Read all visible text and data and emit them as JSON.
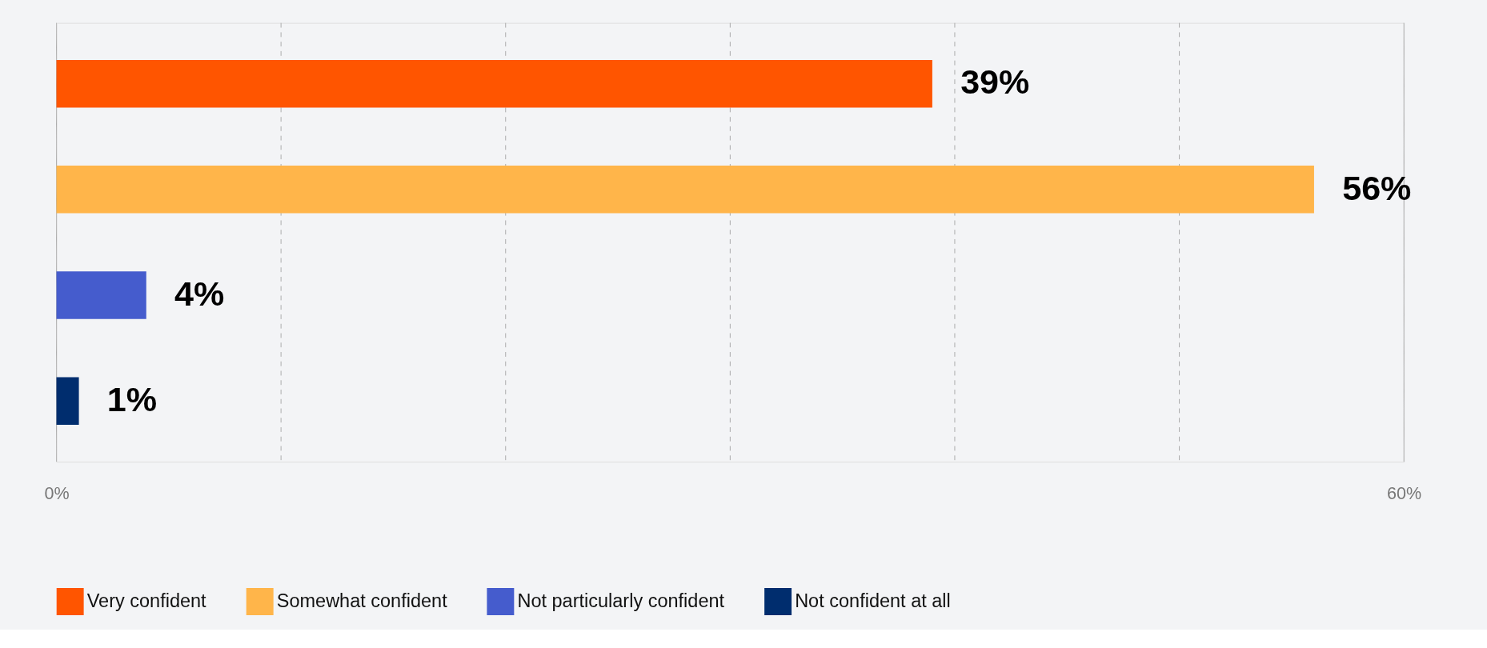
{
  "chart_data": {
    "type": "bar",
    "orientation": "horizontal",
    "categories": [
      null,
      null,
      null,
      null
    ],
    "series": [
      {
        "name": "Very confident",
        "color": "#ff5500",
        "values": [
          39,
          null,
          null,
          null
        ],
        "value_labels": [
          "39%",
          null,
          null,
          null
        ]
      },
      {
        "name": "Somewhat confident",
        "color": "#ffb54a",
        "values": [
          null,
          56,
          null,
          null
        ],
        "value_labels": [
          null,
          "56%",
          null,
          null
        ]
      },
      {
        "name": "Not particularly confident",
        "color": "#455ccd",
        "values": [
          null,
          null,
          4,
          null
        ],
        "value_labels": [
          null,
          null,
          "4%",
          null
        ]
      },
      {
        "name": "Not confident at all",
        "color": "#002d6e",
        "values": [
          null,
          null,
          null,
          1
        ],
        "value_labels": [
          null,
          null,
          null,
          "1%"
        ]
      }
    ],
    "xlim": [
      0,
      60
    ],
    "xticks": [
      {
        "value": 0,
        "label": "0%"
      },
      {
        "value": 10,
        "label": null
      },
      {
        "value": 20,
        "label": null
      },
      {
        "value": 30,
        "label": null
      },
      {
        "value": 40,
        "label": null
      },
      {
        "value": 50,
        "label": null
      },
      {
        "value": 60,
        "label": "60%"
      }
    ],
    "grid": "x",
    "legend": "bottom",
    "tick_labels": "x"
  }
}
